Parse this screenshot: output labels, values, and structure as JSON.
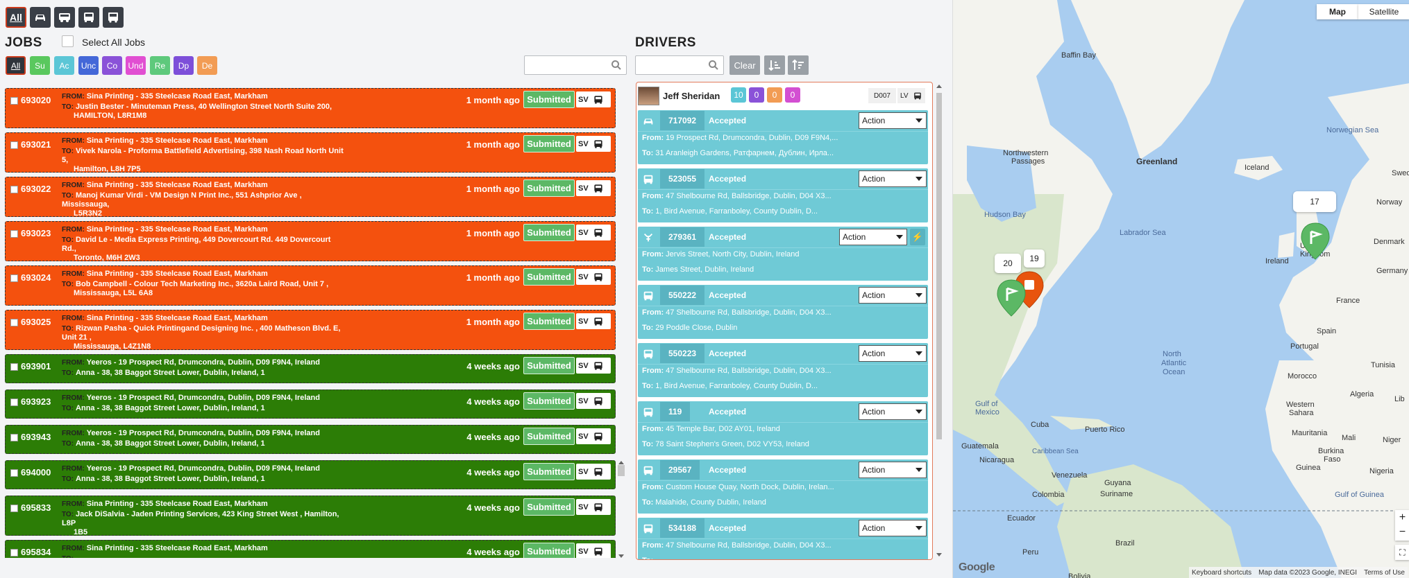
{
  "vehicle_filter": {
    "all_label": "All"
  },
  "jobs": {
    "title": "JOBS",
    "select_all_label": "Select All Jobs",
    "filters": [
      {
        "label": "All",
        "color": "#2f343b"
      },
      {
        "label": "Su",
        "color": "#5ac85e"
      },
      {
        "label": "Ac",
        "color": "#5bc6d6"
      },
      {
        "label": "Unc",
        "color": "#4468d8"
      },
      {
        "label": "Co",
        "color": "#8a52d8"
      },
      {
        "label": "Und",
        "color": "#e14fd2"
      },
      {
        "label": "Re",
        "color": "#5ec97c"
      },
      {
        "label": "Dp",
        "color": "#7d4fd9"
      },
      {
        "label": "De",
        "color": "#f29c54"
      }
    ],
    "search_placeholder": "",
    "list": [
      {
        "id": "693020",
        "from_label": "FROM:",
        "from": "Sina Printing - 335 Steelcase Road East, Markham",
        "to_label": "TO:",
        "to1": "Justin Bester - Minuteman Press, 40 Wellington Street North Suite 200,",
        "to2": "HAMILTON, L8R1M8",
        "ago": "1 month ago",
        "status": "Submitted",
        "sv": "SV",
        "color": "orange"
      },
      {
        "id": "693021",
        "from_label": "FROM:",
        "from": "Sina Printing - 335 Steelcase Road East, Markham",
        "to_label": "TO:",
        "to1": "Vivek Narola - Proforma Battlefield Advertising, 398 Nash Road North Unit 5,",
        "to2": "Hamilton, L8H 7P5",
        "ago": "1 month ago",
        "status": "Submitted",
        "sv": "SV",
        "color": "orange"
      },
      {
        "id": "693022",
        "from_label": "FROM:",
        "from": "Sina Printing - 335 Steelcase Road East, Markham",
        "to_label": "TO:",
        "to1": "Manoj Kumar Virdi - VM Design N Print Inc., 551 Ashprior Ave , Mississauga,",
        "to2": "L5R3N2",
        "ago": "1 month ago",
        "status": "Submitted",
        "sv": "SV",
        "color": "orange"
      },
      {
        "id": "693023",
        "from_label": "FROM:",
        "from": "Sina Printing - 335 Steelcase Road East, Markham",
        "to_label": "TO:",
        "to1": "David Le - Media Express Printing, 449 Dovercourt Rd. 449 Dovercourt Rd.,",
        "to2": "Toronto, M6H 2W3",
        "ago": "1 month ago",
        "status": "Submitted",
        "sv": "SV",
        "color": "orange"
      },
      {
        "id": "693024",
        "from_label": "FROM:",
        "from": "Sina Printing - 335 Steelcase Road East, Markham",
        "to_label": "TO:",
        "to1": "Bob Campbell - Colour Tech Marketing Inc., 3620a Laird Road, Unit 7 ,",
        "to2": "Mississauga, L5L 6A8",
        "ago": "1 month ago",
        "status": "Submitted",
        "sv": "SV",
        "color": "orange"
      },
      {
        "id": "693025",
        "from_label": "FROM:",
        "from": "Sina Printing - 335 Steelcase Road East, Markham",
        "to_label": "TO:",
        "to1": "Rizwan Pasha - Quick Printingand Designing Inc. , 400 Matheson Blvd. E, Unit 21 ,",
        "to2": "Mississauga, L4Z1N8",
        "ago": "1 month ago",
        "status": "Submitted",
        "sv": "SV",
        "color": "orange"
      },
      {
        "id": "693901",
        "from_label": "FROM:",
        "from": "Yeeros - 19 Prospect Rd, Drumcondra, Dublin, D09 F9N4, Ireland",
        "to_label": "TO:",
        "to1": "Anna - 38, 38 Baggot Street Lower, Dublin, Ireland, 1",
        "to2": "",
        "ago": "4 weeks ago",
        "status": "Submitted",
        "sv": "SV",
        "color": "green"
      },
      {
        "id": "693923",
        "from_label": "FROM:",
        "from": "Yeeros - 19 Prospect Rd, Drumcondra, Dublin, D09 F9N4, Ireland",
        "to_label": "TO:",
        "to1": "Anna - 38, 38 Baggot Street Lower, Dublin, Ireland, 1",
        "to2": "",
        "ago": "4 weeks ago",
        "status": "Submitted",
        "sv": "SV",
        "color": "green"
      },
      {
        "id": "693943",
        "from_label": "FROM:",
        "from": "Yeeros - 19 Prospect Rd, Drumcondra, Dublin, D09 F9N4, Ireland",
        "to_label": "TO:",
        "to1": "Anna - 38, 38 Baggot Street Lower, Dublin, Ireland, 1",
        "to2": "",
        "ago": "4 weeks ago",
        "status": "Submitted",
        "sv": "SV",
        "color": "green"
      },
      {
        "id": "694000",
        "from_label": "FROM:",
        "from": "Yeeros - 19 Prospect Rd, Drumcondra, Dublin, D09 F9N4, Ireland",
        "to_label": "TO:",
        "to1": "Anna - 38, 38 Baggot Street Lower, Dublin, Ireland, 1",
        "to2": "",
        "ago": "4 weeks ago",
        "status": "Submitted",
        "sv": "SV",
        "color": "green"
      },
      {
        "id": "695833",
        "from_label": "FROM:",
        "from": "Sina Printing - 335 Steelcase Road East, Markham",
        "to_label": "TO:",
        "to1": "Jack DiSalvia - Jaden Printing Services, 423 King Street West , Hamilton, L8P",
        "to2": "1B5",
        "ago": "4 weeks ago",
        "status": "Submitted",
        "sv": "SV",
        "color": "green"
      },
      {
        "id": "695834",
        "from_label": "FROM:",
        "from": "Sina Printing - 335 Steelcase Road East, Markham",
        "to_label": "TO:",
        "to1": "",
        "to2": "",
        "ago": "4 weeks ago",
        "status": "Submitted",
        "sv": "SV",
        "color": "green"
      }
    ]
  },
  "drivers": {
    "title": "DRIVERS",
    "search_placeholder": "",
    "clear_label": "Clear",
    "driver": {
      "name": "Jeff Sheridan",
      "counts": [
        "10",
        "0",
        "0",
        "0"
      ],
      "count_colors": [
        "#5bc6d6",
        "#8a52d8",
        "#f29c54",
        "#d34fd2"
      ],
      "code": "D007",
      "lv": "LV"
    },
    "cards": [
      {
        "id": "717092",
        "status": "Accepted",
        "action": "Action",
        "vehicle": "car",
        "from": "19 Prospect Rd, Drumcondra, Dublin, D09 F9N4,...",
        "to": "31 Aranleigh Gardens, Ратфарнем, Дублин, Ирла..."
      },
      {
        "id": "523055",
        "status": "Accepted",
        "action": "Action",
        "vehicle": "bus",
        "from": "47 Shelbourne Rd, Ballsbridge, Dublin, D04 X3...",
        "to": "1, Bird Avenue, Farranboley, County Dublin, D..."
      },
      {
        "id": "279361",
        "status": "Accepted",
        "action": "Action",
        "vehicle": "bike",
        "from": "Jervis Street, North City, Dublin, Ireland",
        "to": "James Street, Dublin, Ireland"
      },
      {
        "id": "550222",
        "status": "Accepted",
        "action": "Action",
        "vehicle": "bus",
        "from": "47 Shelbourne Rd, Ballsbridge, Dublin, D04 X3...",
        "to": "29 Poddle Close, Dublin"
      },
      {
        "id": "550223",
        "status": "Accepted",
        "action": "Action",
        "vehicle": "bus",
        "from": "47 Shelbourne Rd, Ballsbridge, Dublin, D04 X3...",
        "to": "1, Bird Avenue, Farranboley, County Dublin, D..."
      },
      {
        "id": "119",
        "status": "Accepted",
        "action": "Action",
        "vehicle": "bus",
        "from": "45 Temple Bar, D02 AY01, Ireland",
        "to": "78 Saint Stephen's Green, D02 VY53, Ireland"
      },
      {
        "id": "29567",
        "status": "Accepted",
        "action": "Action",
        "vehicle": "bus",
        "from": "Custom House Quay, North Dock, Dublin, Irelan...",
        "to": "Malahide, County Dublin, Ireland"
      },
      {
        "id": "534188",
        "status": "Accepted",
        "action": "Action",
        "vehicle": "bus",
        "from": "47 Shelbourne Rd, Ballsbridge, Dublin, D04 X3...",
        "to": ""
      }
    ],
    "from_label": "From:",
    "to_label": "To:"
  },
  "map": {
    "map_btn": "Map",
    "satellite_btn": "Satellite",
    "labels": {
      "baffin": "Baffin Bay",
      "greenland": "Greenland",
      "iceland": "Iceland",
      "norwegian": "Norwegian Sea",
      "nwp1": "Northwestern",
      "nwp2": "Passages",
      "hudson": "Hudson Bay",
      "labrador": "Labrador Sea",
      "norway": "Norway",
      "uk1": "United",
      "uk2": "Kingdom",
      "ireland": "Ireland",
      "denmark": "Denmark",
      "germany": "Germany",
      "france": "France",
      "spain": "Spain",
      "portugal": "Portugal",
      "na1": "North",
      "na2": "Atlantic",
      "na3": "Ocean",
      "morocco": "Morocco",
      "tunisia": "Tunisia",
      "algeria": "Algeria",
      "ws1": "Western",
      "ws2": "Sahara",
      "mauritania": "Mauritania",
      "mali": "Mali",
      "niger": "Niger",
      "gulfmex1": "Gulf of",
      "gulfmex2": "Mexico",
      "cuba": "Cuba",
      "pr": "Puerto Rico",
      "guatemala": "Guatemala",
      "carib": "Caribbean Sea",
      "nicaragua": "Nicaragua",
      "venezuela": "Venezuela",
      "guyana": "Guyana",
      "suriname": "Suriname",
      "colombia": "Colombia",
      "ecuador": "Ecuador",
      "peru": "Peru",
      "brazil": "Brazil",
      "guinea": "Guinea",
      "burkina1": "Burkina",
      "burkina2": "Faso",
      "nigeria": "Nigeria",
      "gulfguinea": "Gulf of Guinea",
      "sweden": "Swed",
      "libya": "Lib",
      "bolivia": "Bolivia"
    },
    "markers": [
      {
        "count": "17"
      },
      {
        "count": "20"
      },
      {
        "count": "19"
      }
    ],
    "footer": {
      "shortcuts": "Keyboard shortcuts",
      "data": "Map data ©2023 Google, INEGI",
      "terms": "Terms of Use"
    },
    "google": "Google"
  }
}
